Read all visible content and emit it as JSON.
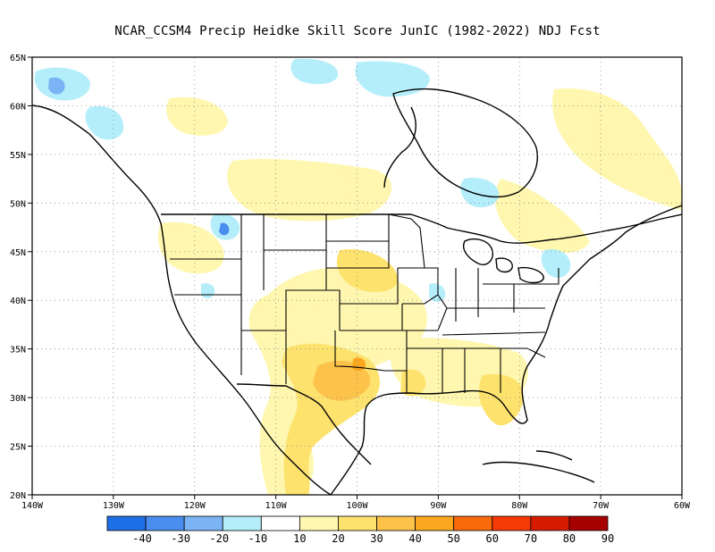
{
  "title": "NCAR_CCSM4 Precip Heidke Skill Score JunIC (1982-2022) NDJ Fcst",
  "map": {
    "region": "North America",
    "lat_range": [
      20,
      65
    ],
    "lon_range": [
      -140,
      -60
    ],
    "lat_ticks": [
      "20N",
      "25N",
      "30N",
      "35N",
      "40N",
      "45N",
      "50N",
      "55N",
      "60N",
      "65N"
    ],
    "lon_ticks": [
      "140W",
      "130W",
      "120W",
      "110W",
      "100W",
      "90W",
      "80W",
      "70W",
      "60W"
    ],
    "gridlines": "dotted"
  },
  "colorbar": {
    "colors": [
      "#1f6fe6",
      "#4a8ff0",
      "#7ab4f5",
      "#b4eefa",
      "#ffffff",
      "#fff7b0",
      "#fde36e",
      "#fcc24a",
      "#fba71f",
      "#f96a0d",
      "#f53a05",
      "#d61b00",
      "#a60000"
    ],
    "labels": [
      "-40",
      "-30",
      "-20",
      "-10",
      "10",
      "20",
      "30",
      "40",
      "50",
      "60",
      "70",
      "80",
      "90"
    ]
  }
}
